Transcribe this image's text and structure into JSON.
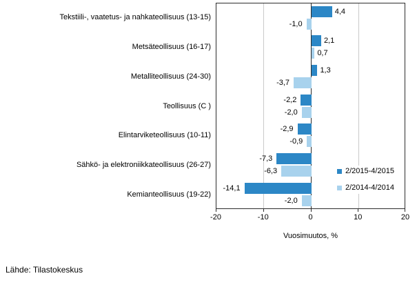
{
  "source_note": "Lähde: Tilastokeskus",
  "colors": {
    "series_current": "#2C87C6",
    "series_previous": "#A8D2ED",
    "axis_line": "#2b2b2b",
    "gridline": "#c9c9c9",
    "text": "#000000",
    "background": "#ffffff"
  },
  "chart_data": {
    "type": "bar",
    "orientation": "horizontal",
    "title": "",
    "xlabel": "Vuosimuutos, %",
    "ylabel": "",
    "xlim": [
      -20,
      20
    ],
    "xticks": [
      -20,
      -10,
      0,
      10,
      20
    ],
    "xtick_labels": [
      "-20",
      "-10",
      "0",
      "10",
      "20"
    ],
    "grid": "vertical",
    "legend_position": "right-middle",
    "categories": [
      "Tekstiili-, vaatetus- ja nahkateollisuus (13-15)",
      "Metsäteollisuus (16-17)",
      "Metalliteollisuus (24-30)",
      "Teollisuus (C )",
      "Elintarviketeollisuus (10-11)",
      "Sähkö- ja elektroniikkateollisuus (26-27)",
      "Kemianteollisuus (19-22)"
    ],
    "series": [
      {
        "name": "2/2015-4/2015",
        "color_key": "series_current",
        "values": [
          4.4,
          2.1,
          1.3,
          -2.2,
          -2.9,
          -7.3,
          -14.1
        ],
        "value_labels": [
          "4,4",
          "2,1",
          "1,3",
          "-2,2",
          "-2,9",
          "-7,3",
          "-14,1"
        ]
      },
      {
        "name": "2/2014-4/2014",
        "color_key": "series_previous",
        "values": [
          -1.0,
          0.7,
          -3.7,
          -2.0,
          -0.9,
          -6.3,
          -2.0
        ],
        "value_labels": [
          "-1,0",
          "0,7",
          "-3,7",
          "-2,0",
          "-0,9",
          "-6,3",
          "-2,0"
        ]
      }
    ]
  }
}
